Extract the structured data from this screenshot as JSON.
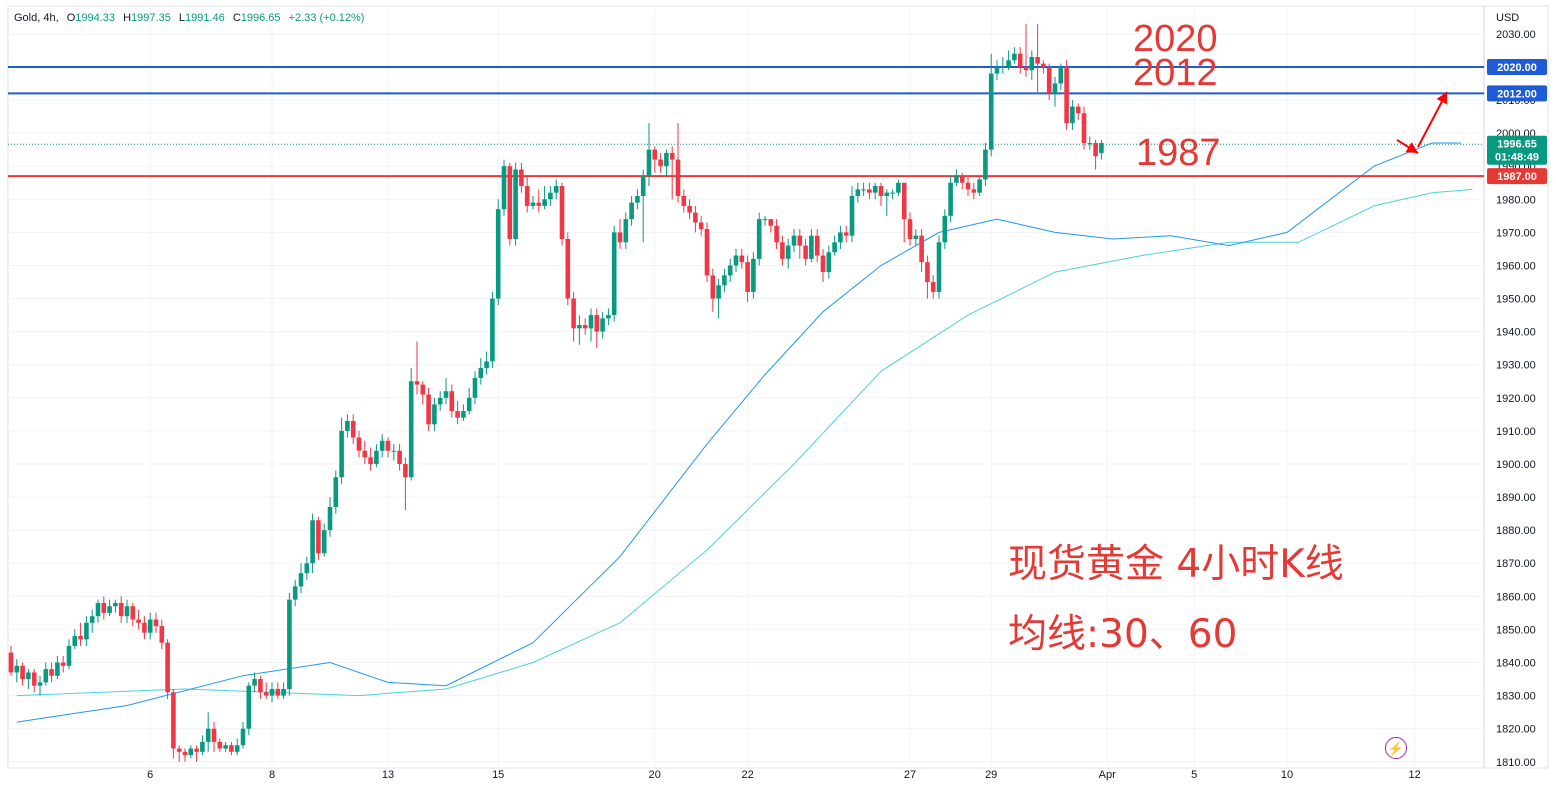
{
  "legend": {
    "symbol": "Gold, 4h,",
    "open_label": "O",
    "open": "1994.33",
    "high_label": "H",
    "high": "1997.35",
    "low_label": "L",
    "low": "1991.46",
    "close_label": "C",
    "close": "1996.65",
    "change": "+2.33 (+0.12%)"
  },
  "currency": "USD",
  "annotations": {
    "level_2020": "2020",
    "level_2012": "2012",
    "level_1987": "1987",
    "title_line1": "现货黄金 4小时K线",
    "title_line2": "均线:30、60"
  },
  "price_tags": {
    "tag_2020": "2020.00",
    "tag_2012": "2012.00",
    "tag_1987": "1987.00",
    "last_price": "1996.65",
    "countdown": "01:48:49"
  },
  "colors": {
    "up": "#089981",
    "down": "#f23645",
    "ma30": "#2196f3",
    "ma60": "#4dd0e1",
    "blue_level": "#1e5bd6",
    "red_level": "#e53935",
    "annotation": "#e53935"
  },
  "flash_icon": "lightning-icon",
  "chart_data": {
    "type": "candlestick",
    "title": "",
    "ylim": [
      1806,
      2036
    ],
    "y_ticks": [
      1810,
      1820,
      1830,
      1840,
      1850,
      1860,
      1870,
      1880,
      1890,
      1900,
      1910,
      1920,
      1930,
      1940,
      1950,
      1960,
      1970,
      1980,
      1990,
      2000,
      2010,
      2020,
      2030
    ],
    "x_ticks": [
      "6",
      "8",
      "13",
      "15",
      "20",
      "22",
      "27",
      "29",
      "Apr",
      "5",
      "10",
      "12"
    ],
    "horizontal_levels": [
      {
        "value": 2020,
        "label": "2020.00",
        "color": "blue"
      },
      {
        "value": 2012,
        "label": "2012.00",
        "color": "blue"
      },
      {
        "value": 1987,
        "label": "1987.00",
        "color": "red"
      }
    ],
    "last_price": 1996.65,
    "candles": [
      [
        1843,
        1837,
        1845,
        1836
      ],
      [
        1837,
        1839,
        1841,
        1834
      ],
      [
        1839,
        1835,
        1840,
        1833
      ],
      [
        1835,
        1837,
        1838,
        1832
      ],
      [
        1837,
        1833,
        1838,
        1831
      ],
      [
        1833,
        1834,
        1836,
        1830
      ],
      [
        1834,
        1838,
        1840,
        1833
      ],
      [
        1838,
        1836,
        1840,
        1834
      ],
      [
        1836,
        1840,
        1842,
        1835
      ],
      [
        1840,
        1839,
        1842,
        1837
      ],
      [
        1839,
        1845,
        1847,
        1838
      ],
      [
        1845,
        1848,
        1850,
        1844
      ],
      [
        1848,
        1847,
        1852,
        1845
      ],
      [
        1847,
        1852,
        1854,
        1845
      ],
      [
        1852,
        1854,
        1856,
        1849
      ],
      [
        1854,
        1858,
        1859,
        1852
      ],
      [
        1858,
        1855,
        1860,
        1853
      ],
      [
        1855,
        1857,
        1859,
        1854
      ],
      [
        1857,
        1858,
        1859,
        1855
      ],
      [
        1858,
        1854,
        1860,
        1852
      ],
      [
        1854,
        1857,
        1859,
        1852
      ],
      [
        1857,
        1853,
        1858,
        1851
      ],
      [
        1853,
        1852,
        1856,
        1850
      ],
      [
        1852,
        1849,
        1854,
        1847
      ],
      [
        1849,
        1853,
        1855,
        1847
      ],
      [
        1853,
        1851,
        1855,
        1849
      ],
      [
        1851,
        1846,
        1853,
        1844
      ],
      [
        1846,
        1831,
        1847,
        1829
      ],
      [
        1831,
        1814,
        1832,
        1811
      ],
      [
        1814,
        1813,
        1815,
        1810
      ],
      [
        1813,
        1812,
        1814,
        1810
      ],
      [
        1812,
        1814,
        1815,
        1811
      ],
      [
        1814,
        1813,
        1815,
        1810
      ],
      [
        1813,
        1816,
        1818,
        1812
      ],
      [
        1816,
        1820,
        1825,
        1813
      ],
      [
        1820,
        1816,
        1822,
        1813
      ],
      [
        1816,
        1814,
        1817,
        1813
      ],
      [
        1814,
        1815,
        1816,
        1813
      ],
      [
        1815,
        1813,
        1816,
        1812
      ],
      [
        1813,
        1815,
        1817,
        1812
      ],
      [
        1815,
        1820,
        1822,
        1814
      ],
      [
        1820,
        1833,
        1834,
        1818
      ],
      [
        1833,
        1835,
        1837,
        1831
      ],
      [
        1835,
        1831,
        1836,
        1829
      ],
      [
        1831,
        1830,
        1834,
        1829
      ],
      [
        1830,
        1832,
        1834,
        1828
      ],
      [
        1832,
        1830,
        1834,
        1829
      ],
      [
        1830,
        1832,
        1834,
        1829
      ],
      [
        1832,
        1859,
        1861,
        1830
      ],
      [
        1859,
        1863,
        1865,
        1857
      ],
      [
        1863,
        1867,
        1870,
        1861
      ],
      [
        1867,
        1870,
        1872,
        1865
      ],
      [
        1870,
        1883,
        1885,
        1867
      ],
      [
        1883,
        1873,
        1884,
        1871
      ],
      [
        1873,
        1880,
        1882,
        1872
      ],
      [
        1880,
        1887,
        1890,
        1878
      ],
      [
        1887,
        1896,
        1898,
        1885
      ],
      [
        1896,
        1910,
        1914,
        1894
      ],
      [
        1910,
        1913,
        1915,
        1908
      ],
      [
        1913,
        1908,
        1915,
        1906
      ],
      [
        1908,
        1904,
        1910,
        1902
      ],
      [
        1904,
        1902,
        1907,
        1900
      ],
      [
        1902,
        1900,
        1905,
        1898
      ],
      [
        1900,
        1904,
        1906,
        1899
      ],
      [
        1904,
        1907,
        1909,
        1902
      ],
      [
        1907,
        1904,
        1908,
        1902
      ],
      [
        1904,
        1904,
        1906,
        1901
      ],
      [
        1904,
        1900,
        1906,
        1898
      ],
      [
        1900,
        1896,
        1902,
        1886
      ],
      [
        1896,
        1925,
        1929,
        1895
      ],
      [
        1925,
        1924,
        1937,
        1921
      ],
      [
        1924,
        1921,
        1925,
        1918
      ],
      [
        1921,
        1912,
        1923,
        1910
      ],
      [
        1912,
        1918,
        1920,
        1910
      ],
      [
        1918,
        1920,
        1922,
        1916
      ],
      [
        1920,
        1922,
        1926,
        1918
      ],
      [
        1922,
        1916,
        1924,
        1914
      ],
      [
        1916,
        1914,
        1919,
        1912
      ],
      [
        1914,
        1916,
        1918,
        1913
      ],
      [
        1916,
        1920,
        1923,
        1915
      ],
      [
        1920,
        1926,
        1928,
        1918
      ],
      [
        1926,
        1929,
        1932,
        1924
      ],
      [
        1929,
        1931,
        1934,
        1927
      ],
      [
        1931,
        1950,
        1952,
        1929
      ],
      [
        1950,
        1977,
        1980,
        1948
      ],
      [
        1977,
        1990,
        1992,
        1975
      ],
      [
        1990,
        1968,
        1991,
        1966
      ],
      [
        1968,
        1989,
        1991,
        1966
      ],
      [
        1989,
        1984,
        1991,
        1982
      ],
      [
        1984,
        1978,
        1987,
        1976
      ],
      [
        1978,
        1979,
        1981,
        1977
      ],
      [
        1979,
        1978,
        1983,
        1976
      ],
      [
        1978,
        1980,
        1984,
        1977
      ],
      [
        1980,
        1982,
        1984,
        1978
      ],
      [
        1982,
        1984,
        1986,
        1980
      ],
      [
        1984,
        1968,
        1985,
        1966
      ],
      [
        1968,
        1950,
        1970,
        1948
      ],
      [
        1950,
        1941,
        1952,
        1937
      ],
      [
        1941,
        1942,
        1945,
        1936
      ],
      [
        1942,
        1941,
        1944,
        1939
      ],
      [
        1941,
        1945,
        1947,
        1937
      ],
      [
        1945,
        1940,
        1947,
        1935
      ],
      [
        1940,
        1944,
        1946,
        1938
      ],
      [
        1944,
        1945,
        1947,
        1942
      ],
      [
        1945,
        1970,
        1972,
        1943
      ],
      [
        1970,
        1967,
        1974,
        1965
      ],
      [
        1967,
        1974,
        1976,
        1965
      ],
      [
        1974,
        1979,
        1981,
        1972
      ],
      [
        1979,
        1981,
        1983,
        1977
      ],
      [
        1981,
        1987,
        1989,
        1967
      ],
      [
        1987,
        1995,
        2003,
        1984
      ],
      [
        1995,
        1992,
        1996,
        1988
      ],
      [
        1992,
        1990,
        1994,
        1988
      ],
      [
        1990,
        1994,
        1995,
        1987
      ],
      [
        1994,
        1992,
        1996,
        1980
      ],
      [
        1992,
        1981,
        2003,
        1979
      ],
      [
        1981,
        1978,
        1983,
        1976
      ],
      [
        1978,
        1976,
        1980,
        1974
      ],
      [
        1976,
        1973,
        1978,
        1970
      ],
      [
        1973,
        1971,
        1975,
        1969
      ],
      [
        1971,
        1957,
        1973,
        1955
      ],
      [
        1957,
        1950,
        1959,
        1946
      ],
      [
        1950,
        1954,
        1956,
        1944
      ],
      [
        1954,
        1957,
        1959,
        1952
      ],
      [
        1957,
        1960,
        1962,
        1955
      ],
      [
        1960,
        1963,
        1965,
        1958
      ],
      [
        1963,
        1961,
        1965,
        1959
      ],
      [
        1961,
        1952,
        1963,
        1949
      ],
      [
        1952,
        1962,
        1964,
        1950
      ],
      [
        1962,
        1974,
        1976,
        1960
      ],
      [
        1974,
        1974,
        1975,
        1972
      ],
      [
        1974,
        1972,
        1974,
        1970
      ],
      [
        1972,
        1967,
        1974,
        1965
      ],
      [
        1967,
        1962,
        1969,
        1960
      ],
      [
        1962,
        1966,
        1968,
        1959
      ],
      [
        1966,
        1969,
        1971,
        1964
      ],
      [
        1969,
        1966,
        1971,
        1962
      ],
      [
        1966,
        1962,
        1968,
        1960
      ],
      [
        1962,
        1969,
        1971,
        1961
      ],
      [
        1969,
        1963,
        1971,
        1961
      ],
      [
        1963,
        1958,
        1965,
        1955
      ],
      [
        1958,
        1964,
        1966,
        1956
      ],
      [
        1964,
        1967,
        1969,
        1963
      ],
      [
        1967,
        1970,
        1972,
        1965
      ],
      [
        1970,
        1969,
        1972,
        1967
      ],
      [
        1969,
        1981,
        1984,
        1967
      ],
      [
        1981,
        1983,
        1985,
        1979
      ],
      [
        1983,
        1983,
        1985,
        1981
      ],
      [
        1983,
        1982,
        1985,
        1980
      ],
      [
        1982,
        1984,
        1985,
        1980
      ],
      [
        1984,
        1981,
        1985,
        1978
      ],
      [
        1981,
        1982,
        1983,
        1975
      ],
      [
        1982,
        1982,
        1983,
        1980
      ],
      [
        1982,
        1985,
        1986,
        1981
      ],
      [
        1985,
        1974,
        1985,
        1967
      ],
      [
        1974,
        1968,
        1976,
        1966
      ],
      [
        1968,
        1969,
        1971,
        1966
      ],
      [
        1969,
        1961,
        1971,
        1958
      ],
      [
        1961,
        1955,
        1963,
        1950
      ],
      [
        1955,
        1952,
        1957,
        1950
      ],
      [
        1952,
        1967,
        1969,
        1950
      ],
      [
        1967,
        1975,
        1977,
        1965
      ],
      [
        1975,
        1985,
        1987,
        1973
      ],
      [
        1985,
        1987,
        1989,
        1984
      ],
      [
        1987,
        1985,
        1988,
        1983
      ],
      [
        1985,
        1983,
        1987,
        1981
      ],
      [
        1983,
        1982,
        1985,
        1980
      ],
      [
        1982,
        1986,
        1987,
        1981
      ],
      [
        1986,
        1995,
        1997,
        1984
      ],
      [
        1995,
        2018,
        2024,
        1993
      ],
      [
        2018,
        2020,
        2022,
        2016
      ],
      [
        2020,
        2020,
        2023,
        2018
      ],
      [
        2020,
        2022,
        2025,
        2019
      ],
      [
        2022,
        2024,
        2026,
        2021
      ],
      [
        2024,
        2020,
        2026,
        2018
      ],
      [
        2020,
        2019,
        2033,
        2017
      ],
      [
        2019,
        2023,
        2025,
        2016
      ],
      [
        2023,
        2021,
        2033,
        2012
      ],
      [
        2021,
        2020,
        2022,
        2018
      ],
      [
        2020,
        2012,
        2021,
        2010
      ],
      [
        2012,
        2015,
        2017,
        2008
      ],
      [
        2015,
        2020,
        2021,
        2013
      ],
      [
        2020,
        2003,
        2022,
        2001
      ],
      [
        2003,
        2008,
        2010,
        2001
      ],
      [
        2008,
        2006,
        2009,
        2004
      ],
      [
        2006,
        1997,
        2008,
        1995
      ],
      [
        1997,
        1997,
        1999,
        1995
      ],
      [
        1997,
        1993,
        1998,
        1989
      ],
      [
        1994,
        1997,
        1998,
        1992
      ]
    ],
    "x_tick_candle_index": [
      24,
      45,
      65,
      84,
      111,
      127,
      155,
      169,
      189,
      204,
      220,
      242
    ],
    "ma30": [
      [
        1,
        1822
      ],
      [
        20,
        1827
      ],
      [
        40,
        1836
      ],
      [
        55,
        1840
      ],
      [
        65,
        1834
      ],
      [
        75,
        1833
      ],
      [
        90,
        1846
      ],
      [
        105,
        1872
      ],
      [
        120,
        1906
      ],
      [
        130,
        1927
      ],
      [
        140,
        1946
      ],
      [
        150,
        1960
      ],
      [
        160,
        1970
      ],
      [
        170,
        1974
      ],
      [
        180,
        1970
      ],
      [
        190,
        1968
      ],
      [
        200,
        1969
      ],
      [
        210,
        1966
      ],
      [
        220,
        1970
      ],
      [
        235,
        1990
      ],
      [
        245,
        1997
      ],
      [
        250,
        1997
      ]
    ],
    "ma60": [
      [
        1,
        1830
      ],
      [
        30,
        1832
      ],
      [
        60,
        1830
      ],
      [
        75,
        1832
      ],
      [
        90,
        1840
      ],
      [
        105,
        1852
      ],
      [
        120,
        1874
      ],
      [
        135,
        1900
      ],
      [
        150,
        1928
      ],
      [
        165,
        1945
      ],
      [
        180,
        1958
      ],
      [
        195,
        1963
      ],
      [
        210,
        1967
      ],
      [
        222,
        1967
      ],
      [
        235,
        1978
      ],
      [
        245,
        1982
      ],
      [
        252,
        1983
      ]
    ]
  }
}
